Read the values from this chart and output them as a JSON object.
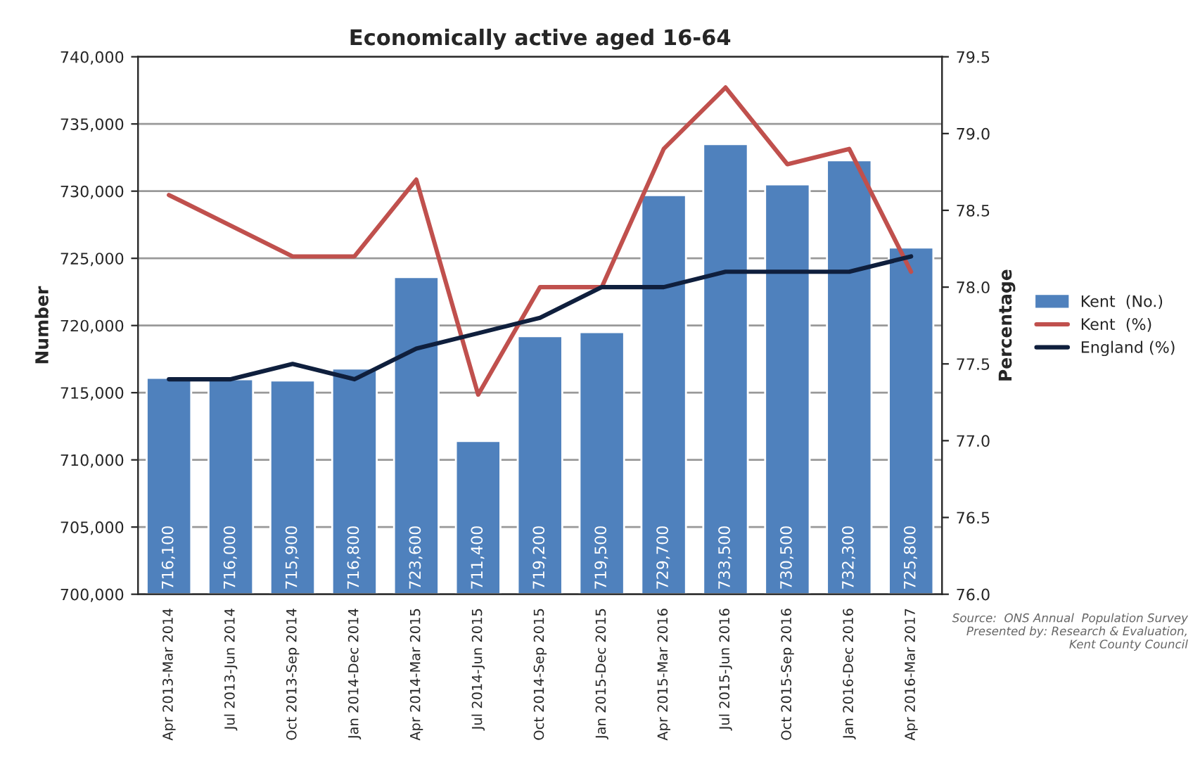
{
  "chart_data": {
    "type": "bar",
    "title": "Economically active aged 16-64",
    "ylabel": "Number",
    "y2label": "Percentage",
    "categories": [
      "Apr 2013-Mar 2014",
      "Jul 2013-Jun 2014",
      "Oct 2013-Sep 2014",
      "Jan 2014-Dec 2014",
      "Apr 2014-Mar 2015",
      "Jul 2014-Jun 2015",
      "Oct 2014-Sep 2015",
      "Jan 2015-Dec 2015",
      "Apr 2015-Mar 2016",
      "Jul 2015-Jun 2016",
      "Oct 2015-Sep 2016",
      "Jan 2016-Dec 2016",
      "Apr 2016-Mar 2017"
    ],
    "series": [
      {
        "name": "Kent  (No.)",
        "color": "#4f81bd",
        "values": [
          716100,
          716000,
          715900,
          716800,
          723600,
          711400,
          719200,
          719500,
          729700,
          733500,
          730500,
          732300,
          725800
        ],
        "value_labels": [
          "716,100",
          "716,000",
          "715,900",
          "716,800",
          "723,600",
          "711,400",
          "719,200",
          "719,500",
          "729,700",
          "733,500",
          "730,500",
          "732,300",
          "725,800"
        ]
      },
      {
        "name": "Kent  (%)",
        "type": "line",
        "axis": "y2",
        "color": "#c0504d",
        "values": [
          78.6,
          78.4,
          78.2,
          78.2,
          78.7,
          77.3,
          78.0,
          78.0,
          78.9,
          79.3,
          78.8,
          78.9,
          78.1
        ]
      },
      {
        "name": "England (%)",
        "type": "line",
        "axis": "y2",
        "color": "#0f1f3d",
        "values": [
          77.4,
          77.4,
          77.5,
          77.4,
          77.6,
          77.7,
          77.8,
          78.0,
          78.0,
          78.1,
          78.1,
          78.1,
          78.2
        ]
      }
    ],
    "ylim": [
      700000,
      740000
    ],
    "yticks": [
      {
        "value": 700000,
        "label": "700,000"
      },
      {
        "value": 705000,
        "label": "705,000"
      },
      {
        "value": 710000,
        "label": "710,000"
      },
      {
        "value": 715000,
        "label": "715,000"
      },
      {
        "value": 720000,
        "label": "720,000"
      },
      {
        "value": 725000,
        "label": "725,000"
      },
      {
        "value": 730000,
        "label": "730,000"
      },
      {
        "value": 735000,
        "label": "735,000"
      },
      {
        "value": 740000,
        "label": "740,000"
      }
    ],
    "y2lim": [
      76.0,
      79.5
    ],
    "y2ticks": [
      {
        "value": 76.0,
        "label": "76.0"
      },
      {
        "value": 76.5,
        "label": "76.5"
      },
      {
        "value": 77.0,
        "label": "77.0"
      },
      {
        "value": 77.5,
        "label": "77.5"
      },
      {
        "value": 78.0,
        "label": "78.0"
      },
      {
        "value": 78.5,
        "label": "78.5"
      },
      {
        "value": 79.0,
        "label": "79.0"
      },
      {
        "value": 79.5,
        "label": "79.5"
      }
    ],
    "grid": "y",
    "legend": "right",
    "annotations": [
      "Source:  ONS Annual  Population Survey\nPresented by: Research & Evaluation,\nKent County Council"
    ]
  }
}
